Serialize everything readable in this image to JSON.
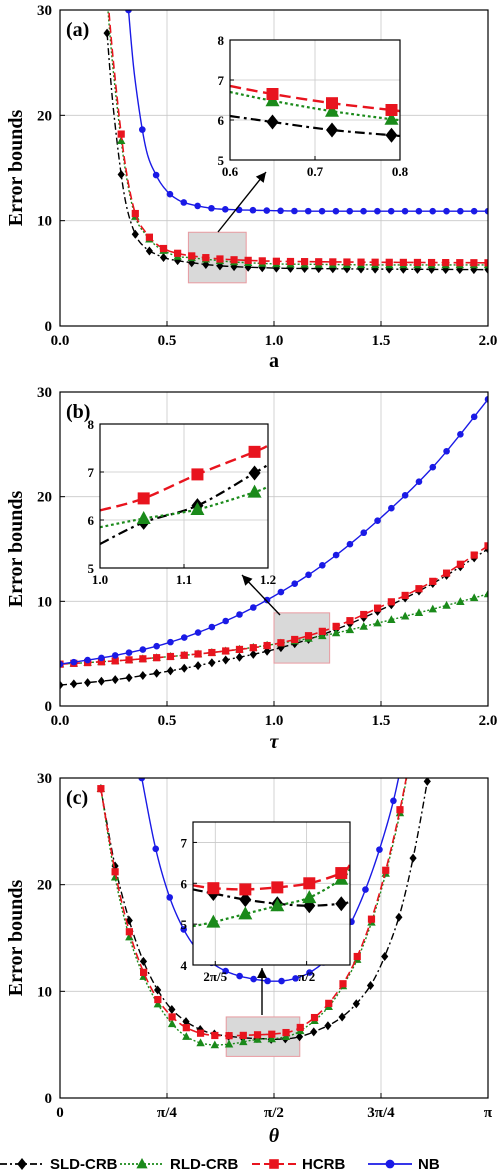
{
  "legend": [
    {
      "key": "sld",
      "label": "SLD-CRB"
    },
    {
      "key": "rld",
      "label": "RLD-CRB"
    },
    {
      "key": "hcrb",
      "label": "HCRB"
    },
    {
      "key": "nb",
      "label": "NB"
    }
  ],
  "colors": {
    "sld": "#000000",
    "rld": "#1a8a1a",
    "hcrb": "#e8141e",
    "nb": "#1a1ae6"
  },
  "chart_data": [
    {
      "type": "line",
      "panel_label": "(a)",
      "xlabel": "a",
      "ylabel": "Error bounds",
      "xlim": [
        0,
        2
      ],
      "ylim": [
        0,
        30
      ],
      "xticks": [
        "0.0",
        "0.5",
        "1.0",
        "1.5",
        "2.0"
      ],
      "yticks": [
        "0",
        "10",
        "20",
        "30"
      ],
      "grid": true,
      "series": [
        {
          "key": "sld",
          "x": [
            0.22,
            0.25,
            0.3,
            0.35,
            0.4,
            0.45,
            0.5,
            0.55,
            0.6,
            0.7,
            0.8,
            1.0,
            1.2,
            1.5,
            2.0
          ],
          "y": [
            27.8,
            20.5,
            12.5,
            8.8,
            7.4,
            6.8,
            6.4,
            6.2,
            6.05,
            5.8,
            5.65,
            5.5,
            5.45,
            5.4,
            5.35
          ]
        },
        {
          "key": "rld",
          "x": [
            0.22,
            0.25,
            0.3,
            0.35,
            0.4,
            0.45,
            0.5,
            0.55,
            0.6,
            0.7,
            0.8,
            1.0,
            1.2,
            1.5,
            2.0
          ],
          "y": [
            31,
            24,
            15.5,
            10.5,
            8.7,
            7.6,
            7.0,
            6.6,
            6.5,
            6.3,
            6.1,
            5.9,
            5.85,
            5.8,
            5.8
          ]
        },
        {
          "key": "hcrb",
          "x": [
            0.22,
            0.25,
            0.3,
            0.35,
            0.4,
            0.45,
            0.5,
            0.55,
            0.6,
            0.7,
            0.8,
            1.0,
            1.2,
            1.5,
            2.0
          ],
          "y": [
            32,
            25,
            16,
            10.8,
            8.9,
            7.8,
            7.2,
            6.9,
            6.7,
            6.45,
            6.3,
            6.15,
            6.1,
            6.05,
            6.0
          ]
        },
        {
          "key": "nb",
          "x": [
            0.32,
            0.35,
            0.4,
            0.45,
            0.5,
            0.55,
            0.6,
            0.7,
            0.8,
            1.0,
            1.2,
            1.5,
            2.0
          ],
          "y": [
            30,
            23.5,
            17,
            14.3,
            12.8,
            12.0,
            11.6,
            11.2,
            11.05,
            10.95,
            10.9,
            10.9,
            10.9
          ]
        }
      ],
      "inset": {
        "xlim": [
          0.6,
          0.8
        ],
        "ylim": [
          5,
          8
        ],
        "xticks": [
          "0.6",
          "0.7",
          "0.8"
        ],
        "yticks": [
          "5",
          "6",
          "7",
          "8"
        ],
        "series": [
          {
            "key": "sld",
            "x": [
              0.6,
              0.65,
              0.72,
              0.79,
              0.8
            ],
            "y": [
              6.1,
              5.95,
              5.75,
              5.62,
              5.6
            ]
          },
          {
            "key": "rld",
            "x": [
              0.6,
              0.65,
              0.72,
              0.79,
              0.8
            ],
            "y": [
              6.7,
              6.48,
              6.22,
              6.02,
              6.0
            ]
          },
          {
            "key": "hcrb",
            "x": [
              0.6,
              0.65,
              0.72,
              0.79,
              0.8
            ],
            "y": [
              6.85,
              6.65,
              6.42,
              6.25,
              6.22
            ]
          }
        ]
      }
    },
    {
      "type": "line",
      "panel_label": "(b)",
      "xlabel": "τ",
      "ylabel": "Error bounds",
      "xlim": [
        0,
        2
      ],
      "ylim": [
        0,
        30
      ],
      "xticks": [
        "0.0",
        "0.5",
        "1.0",
        "1.5",
        "2.0"
      ],
      "yticks": [
        "0",
        "10",
        "20",
        "30"
      ],
      "grid": true,
      "series": [
        {
          "key": "sld",
          "x": [
            0,
            0.25,
            0.5,
            0.75,
            1.0,
            1.25,
            1.5,
            1.75,
            2.0
          ],
          "y": [
            2.0,
            2.5,
            3.3,
            4.3,
            5.4,
            7.0,
            9.2,
            11.8,
            15.0
          ]
        },
        {
          "key": "rld",
          "x": [
            0,
            0.25,
            0.5,
            0.75,
            1.0,
            1.25,
            1.5,
            1.75,
            2.0
          ],
          "y": [
            4.0,
            4.3,
            4.7,
            5.2,
            5.9,
            6.8,
            8.0,
            9.3,
            10.7
          ]
        },
        {
          "key": "hcrb",
          "x": [
            0,
            0.25,
            0.5,
            0.75,
            1.0,
            1.25,
            1.5,
            1.75,
            2.0
          ],
          "y": [
            4.0,
            4.3,
            4.7,
            5.2,
            5.9,
            7.3,
            9.5,
            12.0,
            15.3
          ]
        },
        {
          "key": "nb",
          "x": [
            0,
            0.25,
            0.5,
            0.75,
            1.0,
            1.25,
            1.5,
            1.75,
            2.0
          ],
          "y": [
            4.0,
            4.8,
            6.0,
            7.9,
            10.5,
            13.8,
            18.0,
            23.0,
            29.3
          ]
        }
      ],
      "inset": {
        "xlim": [
          1.0,
          1.25
        ],
        "ylim": [
          5,
          8
        ],
        "xticks": [
          "1.0",
          "1.1",
          "1.2"
        ],
        "yticks": [
          "5",
          "6",
          "7",
          "8"
        ],
        "series": [
          {
            "key": "sld",
            "x": [
              1.0,
              1.065,
              1.145,
              1.23,
              1.25
            ],
            "y": [
              5.5,
              5.95,
              6.3,
              6.98,
              7.15
            ]
          },
          {
            "key": "rld",
            "x": [
              1.0,
              1.065,
              1.145,
              1.23,
              1.25
            ],
            "y": [
              5.85,
              6.03,
              6.22,
              6.58,
              6.7
            ]
          },
          {
            "key": "hcrb",
            "x": [
              1.0,
              1.065,
              1.145,
              1.23,
              1.25
            ],
            "y": [
              6.2,
              6.45,
              6.95,
              7.42,
              7.55
            ]
          }
        ]
      }
    },
    {
      "type": "line",
      "panel_label": "(c)",
      "xlabel": "θ",
      "ylabel": "Error bounds",
      "xlim": [
        0,
        3.1416
      ],
      "ylim": [
        0,
        30
      ],
      "xticks": [
        "0",
        "π/4",
        "π/2",
        "3π/4",
        "π"
      ],
      "yticks": [
        "0",
        "10",
        "20",
        "30"
      ],
      "grid": true,
      "series": [
        {
          "key": "sld",
          "x": [
            0.3,
            0.4,
            0.5,
            0.6,
            0.7,
            0.8,
            0.9,
            1.0,
            1.1,
            1.2,
            1.3,
            1.4,
            1.5,
            1.571,
            1.7,
            1.8,
            1.9,
            2.0,
            2.1,
            2.2,
            2.3,
            2.4,
            2.5,
            2.6,
            2.7,
            2.8
          ],
          "y": [
            29,
            22,
            17,
            13.2,
            10.5,
            8.6,
            7.4,
            6.6,
            6.1,
            5.85,
            5.7,
            5.6,
            5.55,
            5.5,
            5.6,
            5.9,
            6.4,
            7.0,
            7.9,
            9.2,
            11.0,
            13.8,
            17.5,
            23,
            30,
            38
          ]
        },
        {
          "key": "rld",
          "x": [
            0.3,
            0.4,
            0.5,
            0.6,
            0.7,
            0.8,
            0.9,
            1.0,
            1.1,
            1.2,
            1.3,
            1.4,
            1.5,
            1.571,
            1.7,
            1.8,
            1.9,
            2.0,
            2.1,
            2.2,
            2.3,
            2.4,
            2.5,
            2.6
          ],
          "y": [
            29,
            21,
            15.5,
            11.8,
            9.2,
            7.3,
            6.0,
            5.3,
            5.0,
            5.0,
            5.15,
            5.4,
            5.55,
            5.55,
            5.9,
            6.6,
            7.6,
            9.0,
            11.0,
            13.5,
            17.0,
            21.5,
            27,
            34
          ]
        },
        {
          "key": "hcrb",
          "x": [
            0.3,
            0.4,
            0.5,
            0.6,
            0.7,
            0.8,
            0.9,
            1.0,
            1.1,
            1.2,
            1.3,
            1.4,
            1.5,
            1.571,
            1.7,
            1.8,
            1.9,
            2.0,
            2.1,
            2.2,
            2.3,
            2.4,
            2.5,
            2.6
          ],
          "y": [
            29,
            21.5,
            16,
            12.2,
            9.6,
            7.9,
            6.8,
            6.2,
            5.9,
            5.85,
            5.85,
            5.9,
            5.95,
            6.0,
            6.25,
            6.9,
            7.9,
            9.3,
            11.2,
            13.8,
            17.3,
            21.8,
            27.3,
            34
          ]
        },
        {
          "key": "nb",
          "x": [
            0.6,
            0.7,
            0.8,
            0.9,
            1.0,
            1.1,
            1.2,
            1.3,
            1.4,
            1.5,
            1.571,
            1.65,
            1.75,
            1.85,
            1.95,
            2.05,
            2.15,
            2.25,
            2.35,
            2.45,
            2.55
          ],
          "y": [
            30,
            23.5,
            19.0,
            16.0,
            14.0,
            12.8,
            12.0,
            11.5,
            11.2,
            11.0,
            10.95,
            11.0,
            11.3,
            11.9,
            12.9,
            14.5,
            16.8,
            19.8,
            23.5,
            28.0,
            34
          ]
        }
      ],
      "inset": {
        "xlim": [
          1.18,
          1.72
        ],
        "ylim": [
          4,
          7.5
        ],
        "xticks": [
          "2π/5",
          "π/2"
        ],
        "xtickvals": [
          1.2566,
          1.5708
        ],
        "yticks": [
          "4",
          "5",
          "6",
          "7"
        ],
        "series": [
          {
            "key": "sld",
            "x": [
              1.18,
              1.25,
              1.36,
              1.47,
              1.58,
              1.69,
              1.72
            ],
            "y": [
              5.85,
              5.75,
              5.6,
              5.5,
              5.45,
              5.5,
              5.55
            ]
          },
          {
            "key": "rld",
            "x": [
              1.18,
              1.25,
              1.36,
              1.47,
              1.58,
              1.69,
              1.72
            ],
            "y": [
              4.95,
              5.05,
              5.25,
              5.45,
              5.65,
              6.1,
              6.35
            ]
          },
          {
            "key": "hcrb",
            "x": [
              1.18,
              1.25,
              1.36,
              1.47,
              1.58,
              1.69,
              1.72
            ],
            "y": [
              5.95,
              5.88,
              5.85,
              5.9,
              6.0,
              6.25,
              6.45
            ]
          }
        ]
      }
    }
  ]
}
